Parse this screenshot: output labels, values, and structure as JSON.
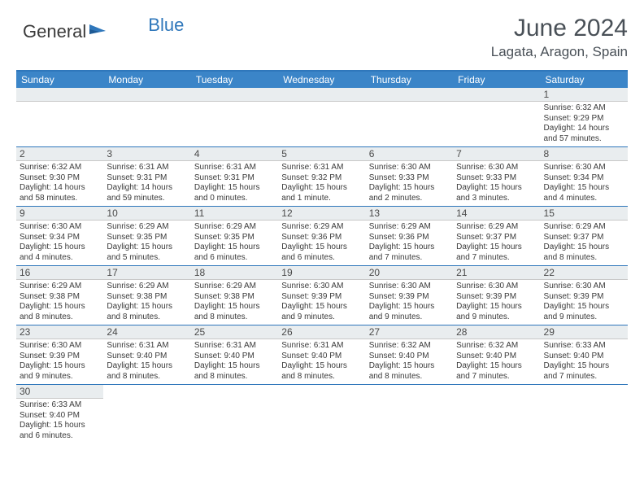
{
  "logo": {
    "text1": "General",
    "text2": "Blue"
  },
  "title": "June 2024",
  "location": "Lagata, Aragon, Spain",
  "colors": {
    "header_bar": "#3b85c8",
    "border": "#2f77bb",
    "day_number_bg": "#e9edef",
    "text": "#3a3a3a"
  },
  "weekdays": [
    "Sunday",
    "Monday",
    "Tuesday",
    "Wednesday",
    "Thursday",
    "Friday",
    "Saturday"
  ],
  "weeks": [
    [
      {
        "n": "",
        "sunrise": "",
        "sunset": "",
        "daylight": ""
      },
      {
        "n": "",
        "sunrise": "",
        "sunset": "",
        "daylight": ""
      },
      {
        "n": "",
        "sunrise": "",
        "sunset": "",
        "daylight": ""
      },
      {
        "n": "",
        "sunrise": "",
        "sunset": "",
        "daylight": ""
      },
      {
        "n": "",
        "sunrise": "",
        "sunset": "",
        "daylight": ""
      },
      {
        "n": "",
        "sunrise": "",
        "sunset": "",
        "daylight": ""
      },
      {
        "n": "1",
        "sunrise": "Sunrise: 6:32 AM",
        "sunset": "Sunset: 9:29 PM",
        "daylight": "Daylight: 14 hours and 57 minutes."
      }
    ],
    [
      {
        "n": "2",
        "sunrise": "Sunrise: 6:32 AM",
        "sunset": "Sunset: 9:30 PM",
        "daylight": "Daylight: 14 hours and 58 minutes."
      },
      {
        "n": "3",
        "sunrise": "Sunrise: 6:31 AM",
        "sunset": "Sunset: 9:31 PM",
        "daylight": "Daylight: 14 hours and 59 minutes."
      },
      {
        "n": "4",
        "sunrise": "Sunrise: 6:31 AM",
        "sunset": "Sunset: 9:31 PM",
        "daylight": "Daylight: 15 hours and 0 minutes."
      },
      {
        "n": "5",
        "sunrise": "Sunrise: 6:31 AM",
        "sunset": "Sunset: 9:32 PM",
        "daylight": "Daylight: 15 hours and 1 minute."
      },
      {
        "n": "6",
        "sunrise": "Sunrise: 6:30 AM",
        "sunset": "Sunset: 9:33 PM",
        "daylight": "Daylight: 15 hours and 2 minutes."
      },
      {
        "n": "7",
        "sunrise": "Sunrise: 6:30 AM",
        "sunset": "Sunset: 9:33 PM",
        "daylight": "Daylight: 15 hours and 3 minutes."
      },
      {
        "n": "8",
        "sunrise": "Sunrise: 6:30 AM",
        "sunset": "Sunset: 9:34 PM",
        "daylight": "Daylight: 15 hours and 4 minutes."
      }
    ],
    [
      {
        "n": "9",
        "sunrise": "Sunrise: 6:30 AM",
        "sunset": "Sunset: 9:34 PM",
        "daylight": "Daylight: 15 hours and 4 minutes."
      },
      {
        "n": "10",
        "sunrise": "Sunrise: 6:29 AM",
        "sunset": "Sunset: 9:35 PM",
        "daylight": "Daylight: 15 hours and 5 minutes."
      },
      {
        "n": "11",
        "sunrise": "Sunrise: 6:29 AM",
        "sunset": "Sunset: 9:35 PM",
        "daylight": "Daylight: 15 hours and 6 minutes."
      },
      {
        "n": "12",
        "sunrise": "Sunrise: 6:29 AM",
        "sunset": "Sunset: 9:36 PM",
        "daylight": "Daylight: 15 hours and 6 minutes."
      },
      {
        "n": "13",
        "sunrise": "Sunrise: 6:29 AM",
        "sunset": "Sunset: 9:36 PM",
        "daylight": "Daylight: 15 hours and 7 minutes."
      },
      {
        "n": "14",
        "sunrise": "Sunrise: 6:29 AM",
        "sunset": "Sunset: 9:37 PM",
        "daylight": "Daylight: 15 hours and 7 minutes."
      },
      {
        "n": "15",
        "sunrise": "Sunrise: 6:29 AM",
        "sunset": "Sunset: 9:37 PM",
        "daylight": "Daylight: 15 hours and 8 minutes."
      }
    ],
    [
      {
        "n": "16",
        "sunrise": "Sunrise: 6:29 AM",
        "sunset": "Sunset: 9:38 PM",
        "daylight": "Daylight: 15 hours and 8 minutes."
      },
      {
        "n": "17",
        "sunrise": "Sunrise: 6:29 AM",
        "sunset": "Sunset: 9:38 PM",
        "daylight": "Daylight: 15 hours and 8 minutes."
      },
      {
        "n": "18",
        "sunrise": "Sunrise: 6:29 AM",
        "sunset": "Sunset: 9:38 PM",
        "daylight": "Daylight: 15 hours and 8 minutes."
      },
      {
        "n": "19",
        "sunrise": "Sunrise: 6:30 AM",
        "sunset": "Sunset: 9:39 PM",
        "daylight": "Daylight: 15 hours and 9 minutes."
      },
      {
        "n": "20",
        "sunrise": "Sunrise: 6:30 AM",
        "sunset": "Sunset: 9:39 PM",
        "daylight": "Daylight: 15 hours and 9 minutes."
      },
      {
        "n": "21",
        "sunrise": "Sunrise: 6:30 AM",
        "sunset": "Sunset: 9:39 PM",
        "daylight": "Daylight: 15 hours and 9 minutes."
      },
      {
        "n": "22",
        "sunrise": "Sunrise: 6:30 AM",
        "sunset": "Sunset: 9:39 PM",
        "daylight": "Daylight: 15 hours and 9 minutes."
      }
    ],
    [
      {
        "n": "23",
        "sunrise": "Sunrise: 6:30 AM",
        "sunset": "Sunset: 9:39 PM",
        "daylight": "Daylight: 15 hours and 9 minutes."
      },
      {
        "n": "24",
        "sunrise": "Sunrise: 6:31 AM",
        "sunset": "Sunset: 9:40 PM",
        "daylight": "Daylight: 15 hours and 8 minutes."
      },
      {
        "n": "25",
        "sunrise": "Sunrise: 6:31 AM",
        "sunset": "Sunset: 9:40 PM",
        "daylight": "Daylight: 15 hours and 8 minutes."
      },
      {
        "n": "26",
        "sunrise": "Sunrise: 6:31 AM",
        "sunset": "Sunset: 9:40 PM",
        "daylight": "Daylight: 15 hours and 8 minutes."
      },
      {
        "n": "27",
        "sunrise": "Sunrise: 6:32 AM",
        "sunset": "Sunset: 9:40 PM",
        "daylight": "Daylight: 15 hours and 8 minutes."
      },
      {
        "n": "28",
        "sunrise": "Sunrise: 6:32 AM",
        "sunset": "Sunset: 9:40 PM",
        "daylight": "Daylight: 15 hours and 7 minutes."
      },
      {
        "n": "29",
        "sunrise": "Sunrise: 6:33 AM",
        "sunset": "Sunset: 9:40 PM",
        "daylight": "Daylight: 15 hours and 7 minutes."
      }
    ],
    [
      {
        "n": "30",
        "sunrise": "Sunrise: 6:33 AM",
        "sunset": "Sunset: 9:40 PM",
        "daylight": "Daylight: 15 hours and 6 minutes."
      },
      {
        "n": "",
        "sunrise": "",
        "sunset": "",
        "daylight": ""
      },
      {
        "n": "",
        "sunrise": "",
        "sunset": "",
        "daylight": ""
      },
      {
        "n": "",
        "sunrise": "",
        "sunset": "",
        "daylight": ""
      },
      {
        "n": "",
        "sunrise": "",
        "sunset": "",
        "daylight": ""
      },
      {
        "n": "",
        "sunrise": "",
        "sunset": "",
        "daylight": ""
      },
      {
        "n": "",
        "sunrise": "",
        "sunset": "",
        "daylight": ""
      }
    ]
  ]
}
